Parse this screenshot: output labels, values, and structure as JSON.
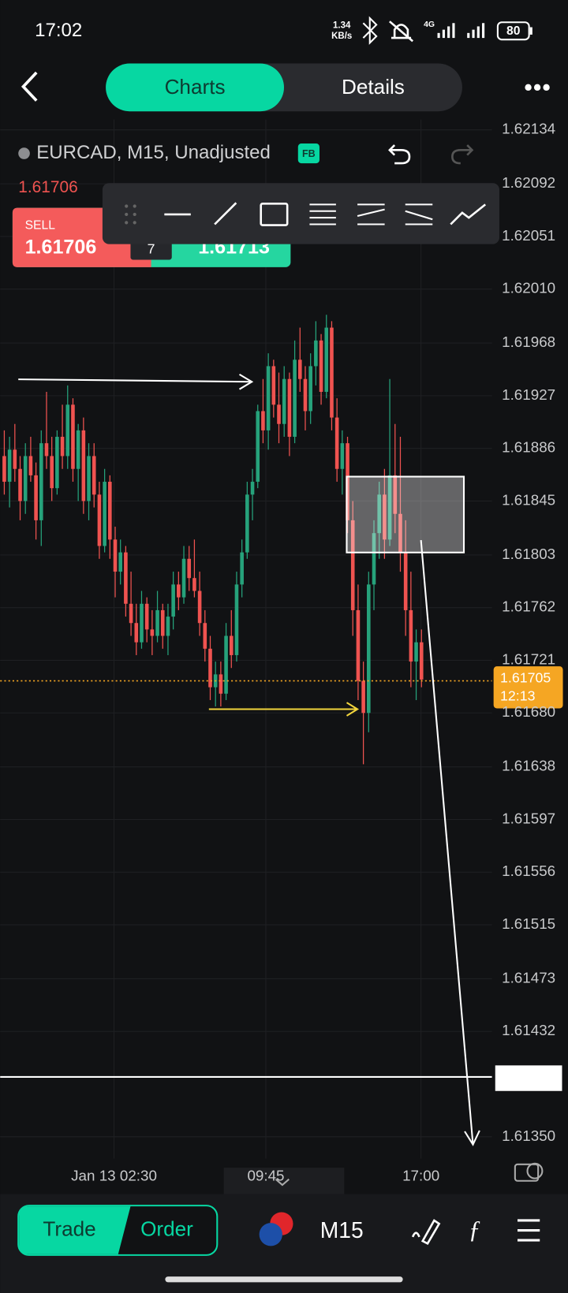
{
  "status_bar": {
    "time": "17:02",
    "speed": "1.34",
    "speed_unit": "KB/s",
    "network": "4G",
    "battery": "80"
  },
  "tabs": [
    "Charts",
    "Details"
  ],
  "chart_data": {
    "type": "candlestick",
    "title": "EURCAD, M15, Unadjusted",
    "badge": "FB",
    "last_price": "1.61706",
    "sell_label": "SELL",
    "sell_price": "1.61706",
    "spread": "7",
    "buy_price": "1.61713",
    "current_price": 1.61705,
    "countdown": "12:13",
    "up_color": "#26a27b",
    "down_color": "#ef5350",
    "ylim": [
      1.61333,
      1.62142
    ],
    "yticks": [
      1.62134,
      1.62092,
      1.62051,
      {
        "value": 1.6201,
        "label": "1.62010"
      },
      1.61968,
      1.61927,
      1.61886,
      1.61845,
      1.61803,
      1.61762,
      1.61721,
      {
        "value": 1.6168,
        "label": "1.61680"
      },
      1.61638,
      1.61597,
      1.61556,
      1.61515,
      1.61473,
      1.61432,
      {
        "value": 1.6135,
        "label": "1.61350"
      }
    ],
    "x_labels": [
      "Jan 13 02:30",
      "09:45",
      "17:00"
    ],
    "grid": true,
    "candles": [
      [
        1.6188,
        1.619,
        1.6185,
        1.6186
      ],
      [
        1.6186,
        1.61895,
        1.6184,
        1.61885
      ],
      [
        1.61885,
        1.61905,
        1.6186,
        1.6187
      ],
      [
        1.6187,
        1.6188,
        1.6183,
        1.61845
      ],
      [
        1.61845,
        1.6189,
        1.61835,
        1.6188
      ],
      [
        1.6188,
        1.61895,
        1.6186,
        1.61865
      ],
      [
        1.61865,
        1.61875,
        1.61815,
        1.6183
      ],
      [
        1.6183,
        1.619,
        1.6181,
        1.6189
      ],
      [
        1.6189,
        1.6193,
        1.6187,
        1.6188
      ],
      [
        1.6188,
        1.61895,
        1.61845,
        1.61855
      ],
      [
        1.61855,
        1.619,
        1.6185,
        1.61895
      ],
      [
        1.61895,
        1.6192,
        1.6187,
        1.6188
      ],
      [
        1.6188,
        1.61935,
        1.6187,
        1.6192
      ],
      [
        1.6192,
        1.61925,
        1.6186,
        1.6187
      ],
      [
        1.6187,
        1.61905,
        1.61845,
        1.619
      ],
      [
        1.619,
        1.6191,
        1.61835,
        1.61845
      ],
      [
        1.61845,
        1.6189,
        1.6183,
        1.6188
      ],
      [
        1.6188,
        1.6189,
        1.6184,
        1.6185
      ],
      [
        1.6185,
        1.6186,
        1.618,
        1.6181
      ],
      [
        1.6181,
        1.6187,
        1.61805,
        1.6186
      ],
      [
        1.6186,
        1.61865,
        1.618,
        1.61815
      ],
      [
        1.61815,
        1.61825,
        1.6177,
        1.6179
      ],
      [
        1.6179,
        1.61815,
        1.6178,
        1.61805
      ],
      [
        1.61805,
        1.6181,
        1.61755,
        1.61765
      ],
      [
        1.61765,
        1.6179,
        1.6174,
        1.6175
      ],
      [
        1.6175,
        1.61765,
        1.61725,
        1.61735
      ],
      [
        1.61735,
        1.61775,
        1.6173,
        1.61765
      ],
      [
        1.61765,
        1.6177,
        1.61735,
        1.61745
      ],
      [
        1.61745,
        1.6176,
        1.61725,
        1.6174
      ],
      [
        1.6174,
        1.61775,
        1.61735,
        1.6176
      ],
      [
        1.6176,
        1.61765,
        1.6173,
        1.6174
      ],
      [
        1.6174,
        1.61765,
        1.61725,
        1.61755
      ],
      [
        1.61755,
        1.6179,
        1.61745,
        1.6178
      ],
      [
        1.6178,
        1.6179,
        1.6176,
        1.6177
      ],
      [
        1.6177,
        1.6181,
        1.61765,
        1.618
      ],
      [
        1.618,
        1.6181,
        1.61775,
        1.61785
      ],
      [
        1.61785,
        1.61815,
        1.6177,
        1.61775
      ],
      [
        1.61775,
        1.6179,
        1.6174,
        1.6175
      ],
      [
        1.6175,
        1.6176,
        1.6172,
        1.6173
      ],
      [
        1.6173,
        1.6174,
        1.6169,
        1.617
      ],
      [
        1.617,
        1.6172,
        1.61685,
        1.6171
      ],
      [
        1.6171,
        1.6172,
        1.61685,
        1.61695
      ],
      [
        1.61695,
        1.6175,
        1.6169,
        1.6174
      ],
      [
        1.6174,
        1.6176,
        1.61715,
        1.61725
      ],
      [
        1.61725,
        1.6179,
        1.6172,
        1.6178
      ],
      [
        1.6178,
        1.61815,
        1.6177,
        1.61805
      ],
      [
        1.61805,
        1.6186,
        1.618,
        1.6185
      ],
      [
        1.6185,
        1.6187,
        1.6183,
        1.6186
      ],
      [
        1.6186,
        1.6192,
        1.61855,
        1.61915
      ],
      [
        1.61915,
        1.6194,
        1.6189,
        1.619
      ],
      [
        1.619,
        1.6196,
        1.61885,
        1.6195
      ],
      [
        1.6195,
        1.61955,
        1.6191,
        1.6192
      ],
      [
        1.6192,
        1.61945,
        1.6189,
        1.61905
      ],
      [
        1.61905,
        1.6195,
        1.61895,
        1.6194
      ],
      [
        1.6194,
        1.61945,
        1.6188,
        1.61895
      ],
      [
        1.61895,
        1.6197,
        1.6189,
        1.61955
      ],
      [
        1.61955,
        1.6198,
        1.6193,
        1.6194
      ],
      [
        1.6194,
        1.6195,
        1.619,
        1.61915
      ],
      [
        1.61915,
        1.6196,
        1.61905,
        1.6195
      ],
      [
        1.6195,
        1.61985,
        1.61935,
        1.6197
      ],
      [
        1.6197,
        1.61975,
        1.6192,
        1.6193
      ],
      [
        1.6193,
        1.6199,
        1.61925,
        1.6198
      ],
      [
        1.6198,
        1.61985,
        1.619,
        1.6191
      ],
      [
        1.6191,
        1.61925,
        1.6186,
        1.6187
      ],
      [
        1.6187,
        1.619,
        1.6185,
        1.6189
      ],
      [
        1.6189,
        1.61895,
        1.6182,
        1.6183
      ],
      [
        1.6183,
        1.61845,
        1.6174,
        1.6176
      ],
      [
        1.6176,
        1.6178,
        1.6169,
        1.61705
      ],
      [
        1.61705,
        1.6172,
        1.6164,
        1.6168
      ],
      [
        1.6168,
        1.6179,
        1.61665,
        1.6178
      ],
      [
        1.6178,
        1.6183,
        1.6176,
        1.6182
      ],
      [
        1.6182,
        1.6186,
        1.618,
        1.6185
      ],
      [
        1.6185,
        1.6187,
        1.618,
        1.61815
      ],
      [
        1.61815,
        1.6194,
        1.6181,
        1.61865
      ],
      [
        1.61865,
        1.61905,
        1.6182,
        1.61835
      ],
      [
        1.61835,
        1.61895,
        1.6179,
        1.61805
      ],
      [
        1.61805,
        1.6183,
        1.6174,
        1.6176
      ],
      [
        1.6176,
        1.6179,
        1.617,
        1.6172
      ],
      [
        1.6172,
        1.61745,
        1.6169,
        1.61735
      ],
      [
        1.61735,
        1.61745,
        1.617,
        1.61706
      ]
    ]
  },
  "bottom_bar": {
    "trade": "Trade",
    "order": "Order",
    "timeframe": "M15"
  }
}
